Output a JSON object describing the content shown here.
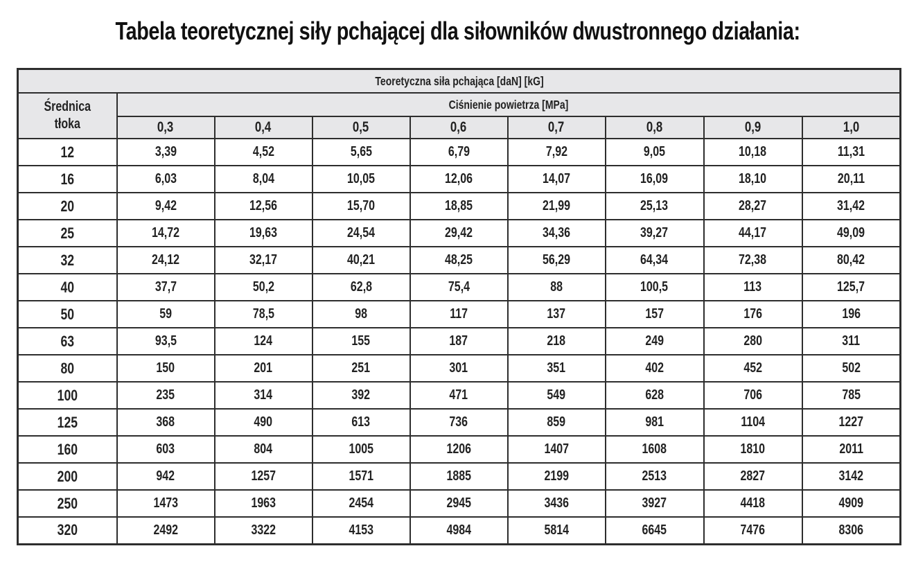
{
  "title": "Tabela teoretycznej siły pchającej dla siłowników dwustronnego działania:",
  "table": {
    "main_header": "Teoretyczna siła pchająca [daN] [kG]",
    "row_header_line1": "Średnica",
    "row_header_line2": "tłoka",
    "pressure_header": "Ciśnienie powietrza [MPa]",
    "pressures": [
      "0,3",
      "0,4",
      "0,5",
      "0,6",
      "0,7",
      "0,8",
      "0,9",
      "1,0"
    ],
    "rows": [
      {
        "diameter": "12",
        "values": [
          "3,39",
          "4,52",
          "5,65",
          "6,79",
          "7,92",
          "9,05",
          "10,18",
          "11,31"
        ]
      },
      {
        "diameter": "16",
        "values": [
          "6,03",
          "8,04",
          "10,05",
          "12,06",
          "14,07",
          "16,09",
          "18,10",
          "20,11"
        ]
      },
      {
        "diameter": "20",
        "values": [
          "9,42",
          "12,56",
          "15,70",
          "18,85",
          "21,99",
          "25,13",
          "28,27",
          "31,42"
        ]
      },
      {
        "diameter": "25",
        "values": [
          "14,72",
          "19,63",
          "24,54",
          "29,42",
          "34,36",
          "39,27",
          "44,17",
          "49,09"
        ]
      },
      {
        "diameter": "32",
        "values": [
          "24,12",
          "32,17",
          "40,21",
          "48,25",
          "56,29",
          "64,34",
          "72,38",
          "80,42"
        ]
      },
      {
        "diameter": "40",
        "values": [
          "37,7",
          "50,2",
          "62,8",
          "75,4",
          "88",
          "100,5",
          "113",
          "125,7"
        ]
      },
      {
        "diameter": "50",
        "values": [
          "59",
          "78,5",
          "98",
          "117",
          "137",
          "157",
          "176",
          "196"
        ]
      },
      {
        "diameter": "63",
        "values": [
          "93,5",
          "124",
          "155",
          "187",
          "218",
          "249",
          "280",
          "311"
        ]
      },
      {
        "diameter": "80",
        "values": [
          "150",
          "201",
          "251",
          "301",
          "351",
          "402",
          "452",
          "502"
        ]
      },
      {
        "diameter": "100",
        "values": [
          "235",
          "314",
          "392",
          "471",
          "549",
          "628",
          "706",
          "785"
        ]
      },
      {
        "diameter": "125",
        "values": [
          "368",
          "490",
          "613",
          "736",
          "859",
          "981",
          "1104",
          "1227"
        ]
      },
      {
        "diameter": "160",
        "values": [
          "603",
          "804",
          "1005",
          "1206",
          "1407",
          "1608",
          "1810",
          "2011"
        ]
      },
      {
        "diameter": "200",
        "values": [
          "942",
          "1257",
          "1571",
          "1885",
          "2199",
          "2513",
          "2827",
          "3142"
        ]
      },
      {
        "diameter": "250",
        "values": [
          "1473",
          "1963",
          "2454",
          "2945",
          "3436",
          "3927",
          "4418",
          "4909"
        ]
      },
      {
        "diameter": "320",
        "values": [
          "2492",
          "3322",
          "4153",
          "4984",
          "5814",
          "6645",
          "7476",
          "8306"
        ]
      }
    ]
  },
  "colors": {
    "header_background": "#e7e7e9",
    "border": "#2d2d2d",
    "text": "#222222",
    "page_background": "#ffffff"
  }
}
